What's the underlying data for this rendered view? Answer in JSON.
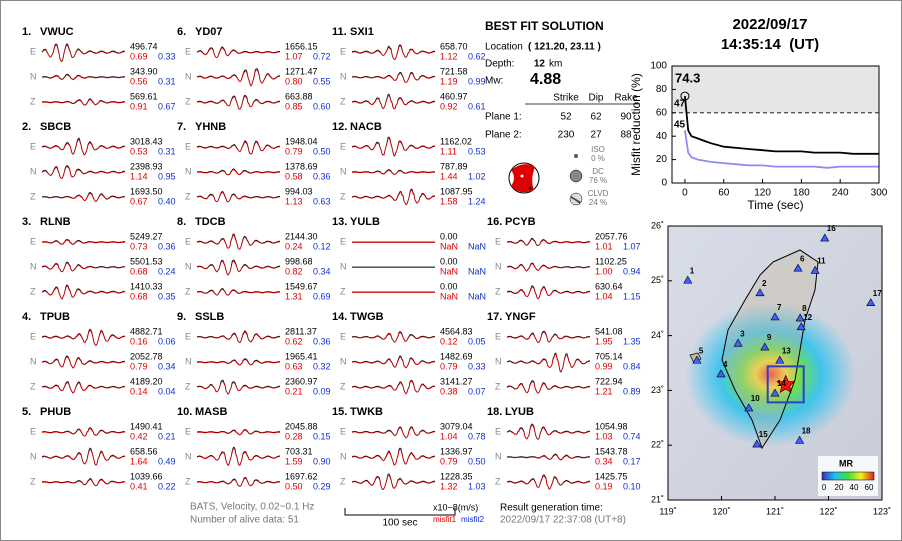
{
  "header": {
    "date": "2022/09/17",
    "time": "14:35:14  (UT)"
  },
  "stations": [
    {
      "number": "1.",
      "name": "VWUC",
      "rows": [
        {
          "comp": "E",
          "amp": "496.74",
          "misfit1": "0.69",
          "misfit2": "0.33"
        },
        {
          "comp": "N",
          "amp": "343.90",
          "misfit1": "0.56",
          "misfit2": "0.31"
        },
        {
          "comp": "Z",
          "amp": "569.61",
          "misfit1": "0.91",
          "misfit2": "0.67"
        }
      ]
    },
    {
      "number": "2.",
      "name": "SBCB",
      "rows": [
        {
          "comp": "E",
          "amp": "3018.43",
          "misfit1": "0.53",
          "misfit2": "0.31"
        },
        {
          "comp": "N",
          "amp": "2398.93",
          "misfit1": "1.14",
          "misfit2": "0.95"
        },
        {
          "comp": "Z",
          "amp": "1693.50",
          "misfit1": "0.67",
          "misfit2": "0.40"
        }
      ]
    },
    {
      "number": "3.",
      "name": "RLNB",
      "rows": [
        {
          "comp": "E",
          "amp": "5249.27",
          "misfit1": "0.73",
          "misfit2": "0.36"
        },
        {
          "comp": "N",
          "amp": "5501.53",
          "misfit1": "0.68",
          "misfit2": "0.24"
        },
        {
          "comp": "Z",
          "amp": "1410.33",
          "misfit1": "0.68",
          "misfit2": "0.35"
        }
      ]
    },
    {
      "number": "4.",
      "name": "TPUB",
      "rows": [
        {
          "comp": "E",
          "amp": "4882.71",
          "misfit1": "0.16",
          "misfit2": "0.06"
        },
        {
          "comp": "N",
          "amp": "2052.78",
          "misfit1": "0.79",
          "misfit2": "0.34"
        },
        {
          "comp": "Z",
          "amp": "4189.20",
          "misfit1": "0.14",
          "misfit2": "0.04"
        }
      ]
    },
    {
      "number": "5.",
      "name": "PHUB",
      "rows": [
        {
          "comp": "E",
          "amp": "1490.41",
          "misfit1": "0.42",
          "misfit2": "0.21"
        },
        {
          "comp": "N",
          "amp": "658.56",
          "misfit1": "1.64",
          "misfit2": "0.49"
        },
        {
          "comp": "Z",
          "amp": "1039.66",
          "misfit1": "0.41",
          "misfit2": "0.22"
        }
      ]
    },
    {
      "number": "6.",
      "name": "YD07",
      "rows": [
        {
          "comp": "E",
          "amp": "1656.15",
          "misfit1": "1.07",
          "misfit2": "0.72"
        },
        {
          "comp": "N",
          "amp": "1271.47",
          "misfit1": "0.80",
          "misfit2": "0.55"
        },
        {
          "comp": "Z",
          "amp": "663.88",
          "misfit1": "0.85",
          "misfit2": "0.60"
        }
      ]
    },
    {
      "number": "7.",
      "name": "YHNB",
      "rows": [
        {
          "comp": "E",
          "amp": "1948.04",
          "misfit1": "0.79",
          "misfit2": "0.50"
        },
        {
          "comp": "N",
          "amp": "1378.69",
          "misfit1": "0.58",
          "misfit2": "0.36"
        },
        {
          "comp": "Z",
          "amp": "994.03",
          "misfit1": "1.13",
          "misfit2": "0.63"
        }
      ]
    },
    {
      "number": "8.",
      "name": "TDCB",
      "rows": [
        {
          "comp": "E",
          "amp": "2144.30",
          "misfit1": "0.24",
          "misfit2": "0.12"
        },
        {
          "comp": "N",
          "amp": "998.68",
          "misfit1": "0.82",
          "misfit2": "0.34"
        },
        {
          "comp": "Z",
          "amp": "1549.67",
          "misfit1": "1.31",
          "misfit2": "0.69"
        }
      ]
    },
    {
      "number": "9.",
      "name": "SSLB",
      "rows": [
        {
          "comp": "E",
          "amp": "2811.37",
          "misfit1": "0.62",
          "misfit2": "0.36"
        },
        {
          "comp": "N",
          "amp": "1965.41",
          "misfit1": "0.63",
          "misfit2": "0.32"
        },
        {
          "comp": "Z",
          "amp": "2360.97",
          "misfit1": "0.21",
          "misfit2": "0.09"
        }
      ]
    },
    {
      "number": "10.",
      "name": "MASB",
      "rows": [
        {
          "comp": "E",
          "amp": "2045.88",
          "misfit1": "0.28",
          "misfit2": "0.15"
        },
        {
          "comp": "N",
          "amp": "703.31",
          "misfit1": "1.59",
          "misfit2": "0.90"
        },
        {
          "comp": "Z",
          "amp": "1697.62",
          "misfit1": "0.50",
          "misfit2": "0.29"
        }
      ]
    },
    {
      "number": "11.",
      "name": "SXI1",
      "rows": [
        {
          "comp": "E",
          "amp": "658.70",
          "misfit1": "1.12",
          "misfit2": "0.62"
        },
        {
          "comp": "N",
          "amp": "721.58",
          "misfit1": "1.19",
          "misfit2": "0.99"
        },
        {
          "comp": "Z",
          "amp": "460.97",
          "misfit1": "0.92",
          "misfit2": "0.61"
        }
      ]
    },
    {
      "number": "12.",
      "name": "NACB",
      "rows": [
        {
          "comp": "E",
          "amp": "1162.02",
          "misfit1": "1.11",
          "misfit2": "0.53"
        },
        {
          "comp": "N",
          "amp": "787.89",
          "misfit1": "1.44",
          "misfit2": "1.02"
        },
        {
          "comp": "Z",
          "amp": "1087.95",
          "misfit1": "1.58",
          "misfit2": "1.24"
        }
      ]
    },
    {
      "number": "13.",
      "name": "YULB",
      "rows": [
        {
          "comp": "E",
          "amp": "0.00",
          "misfit1": "NaN",
          "misfit2": "NaN"
        },
        {
          "comp": "N",
          "amp": "0.00",
          "misfit1": "NaN",
          "misfit2": "NaN"
        },
        {
          "comp": "Z",
          "amp": "0.00",
          "misfit1": "NaN",
          "misfit2": "NaN"
        }
      ]
    },
    {
      "number": "14.",
      "name": "TWGB",
      "rows": [
        {
          "comp": "E",
          "amp": "4564.83",
          "misfit1": "0.12",
          "misfit2": "0.05"
        },
        {
          "comp": "N",
          "amp": "1482.69",
          "misfit1": "0.79",
          "misfit2": "0.33"
        },
        {
          "comp": "Z",
          "amp": "3141.27",
          "misfit1": "0.38",
          "misfit2": "0.07"
        }
      ]
    },
    {
      "number": "15.",
      "name": "TWKB",
      "rows": [
        {
          "comp": "E",
          "amp": "3079.04",
          "misfit1": "1.04",
          "misfit2": "0.78"
        },
        {
          "comp": "N",
          "amp": "1336.97",
          "misfit1": "0.79",
          "misfit2": "0.50"
        },
        {
          "comp": "Z",
          "amp": "1228.35",
          "misfit1": "1.32",
          "misfit2": "1.03"
        }
      ]
    },
    {
      "number": "16.",
      "name": "PCYB",
      "rows": [
        {
          "comp": "E",
          "amp": "2057.76",
          "misfit1": "1.01",
          "misfit2": "1.07"
        },
        {
          "comp": "N",
          "amp": "1102.25",
          "misfit1": "1.00",
          "misfit2": "0.94"
        },
        {
          "comp": "Z",
          "amp": "630.64",
          "misfit1": "1.04",
          "misfit2": "1.15"
        }
      ]
    },
    {
      "number": "17.",
      "name": "YNGF",
      "rows": [
        {
          "comp": "E",
          "amp": "541.08",
          "misfit1": "1.95",
          "misfit2": "1.35"
        },
        {
          "comp": "N",
          "amp": "705.14",
          "misfit1": "0.99",
          "misfit2": "0.84"
        },
        {
          "comp": "Z",
          "amp": "722.94",
          "misfit1": "1.21",
          "misfit2": "0.89"
        }
      ]
    },
    {
      "number": "18.",
      "name": "LYUB",
      "rows": [
        {
          "comp": "E",
          "amp": "1054.98",
          "misfit1": "1.03",
          "misfit2": "0.74"
        },
        {
          "comp": "N",
          "amp": "1543.78",
          "misfit1": "0.34",
          "misfit2": "0.17"
        },
        {
          "comp": "Z",
          "amp": "1425.75",
          "misfit1": "0.19",
          "misfit2": "0.10"
        }
      ]
    }
  ],
  "solution": {
    "title": "BEST FIT SOLUTION",
    "location_label": "Location",
    "location": "( 121.20, 23.11 )",
    "depth_label": "Depth:",
    "depth": "12",
    "depth_unit": "km",
    "mw_label": "Mw:",
    "mw": "4.88",
    "columns": [
      "Strike",
      "Dip",
      "Rake"
    ],
    "planes": [
      {
        "label": "Plane 1:",
        "values": [
          "52",
          "62",
          "90"
        ]
      },
      {
        "label": "Plane 2:",
        "values": [
          "230",
          "27",
          "88"
        ]
      }
    ],
    "components": [
      {
        "name": "ISO",
        "percent": "0 %"
      },
      {
        "name": "DC",
        "percent": "76 %"
      },
      {
        "name": "CLVD",
        "percent": "24 %"
      }
    ]
  },
  "chart_data": {
    "type": "line",
    "xlabel": "Time (sec)",
    "ylabel": "Misfit reduction (%)",
    "x": [
      0,
      5,
      10,
      20,
      30,
      40,
      60,
      80,
      100,
      120,
      140,
      160,
      180,
      200,
      220,
      240,
      260,
      280,
      300
    ],
    "series": [
      {
        "color": "#000000",
        "values": [
          74.3,
          45,
          40,
          38,
          36,
          34,
          31,
          30,
          29,
          28,
          27,
          27,
          27,
          26,
          26,
          26,
          25,
          25,
          25
        ]
      },
      {
        "color": "#8c8cf0",
        "values": [
          45,
          26,
          22,
          20,
          19,
          18,
          17,
          16,
          15,
          15,
          14,
          14,
          14,
          14,
          13,
          14,
          14,
          14,
          14
        ]
      }
    ],
    "threshold": 60,
    "annotations": [
      {
        "text": "74.3",
        "color": "#e00000"
      },
      {
        "text": "47",
        "color": "#999999"
      },
      {
        "text": "45",
        "color": "#8c8cf0"
      }
    ],
    "xlim": [
      -20,
      300
    ],
    "xticks": [
      0,
      60,
      120,
      180,
      240,
      300
    ],
    "ylim": [
      0,
      100
    ],
    "yticks": [
      0,
      20,
      40,
      60,
      80,
      100
    ]
  },
  "map": {
    "xlim": [
      119,
      123
    ],
    "ylim": [
      21,
      26
    ],
    "xticks": [
      {
        "value": 119,
        "label": "119˚"
      },
      {
        "value": 120,
        "label": "120˚"
      },
      {
        "value": 121,
        "label": "121˚"
      },
      {
        "value": 122,
        "label": "122˚"
      },
      {
        "value": 123,
        "label": "123˚"
      }
    ],
    "yticks": [
      {
        "value": 21,
        "label": "21˚"
      },
      {
        "value": 22,
        "label": "22˚"
      },
      {
        "value": 23,
        "label": "23˚"
      },
      {
        "value": 24,
        "label": "24˚"
      },
      {
        "value": 25,
        "label": "25˚"
      },
      {
        "value": 26,
        "label": "26˚"
      }
    ],
    "stations": [
      {
        "label": "1",
        "lon": 119.37,
        "lat": 25.01
      },
      {
        "label": "2",
        "lon": 120.72,
        "lat": 24.78
      },
      {
        "label": "3",
        "lon": 120.31,
        "lat": 23.86
      },
      {
        "label": "4",
        "lon": 119.99,
        "lat": 23.3
      },
      {
        "label": "5",
        "lon": 119.54,
        "lat": 23.55
      },
      {
        "label": "6",
        "lon": 121.43,
        "lat": 25.23
      },
      {
        "label": "7",
        "lon": 121.0,
        "lat": 24.34
      },
      {
        "label": "8",
        "lon": 121.47,
        "lat": 24.32
      },
      {
        "label": "9",
        "lon": 120.81,
        "lat": 23.79
      },
      {
        "label": "10",
        "lon": 120.51,
        "lat": 22.68
      },
      {
        "label": "11",
        "lon": 121.75,
        "lat": 25.19
      },
      {
        "label": "12",
        "lon": 121.49,
        "lat": 24.16
      },
      {
        "label": "13",
        "lon": 121.09,
        "lat": 23.55
      },
      {
        "label": "14",
        "lon": 121.0,
        "lat": 22.95
      },
      {
        "label": "15",
        "lon": 120.66,
        "lat": 22.02
      },
      {
        "label": "16",
        "lon": 121.93,
        "lat": 25.78
      },
      {
        "label": "17",
        "lon": 122.79,
        "lat": 24.6
      },
      {
        "label": "18",
        "lon": 121.46,
        "lat": 22.09
      }
    ],
    "epicenter": {
      "lon": 121.2,
      "lat": 23.11
    },
    "colorbar_title": "MR",
    "colorbar_ticks": [
      "0",
      "20",
      "40",
      "60"
    ]
  },
  "footer": {
    "filter": "BATS, Velocity, 0.02~0.1 Hz",
    "alive": "Number of alive data: 51",
    "scale": "100 sec",
    "units": "x10−8(m/s)",
    "misfit1": "misfit1",
    "misfit2": "misfit2",
    "generation_label": "Result generation time:",
    "generation_time": "2022/09/17 22:37:08 (UT+8)"
  }
}
